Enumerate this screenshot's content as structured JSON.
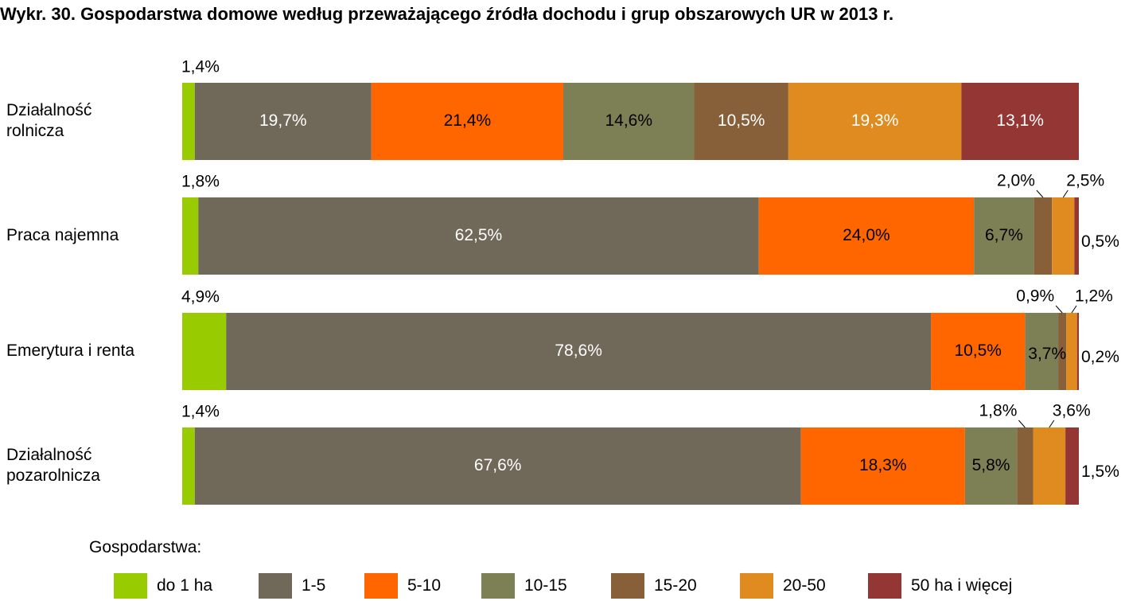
{
  "chart_data": {
    "type": "bar",
    "orientation": "horizontal",
    "stacked": true,
    "normalized": true,
    "title": "Wykr. 30. Gospodarstwa domowe według przeważającego źródła dochodu i grup obszarowych UR w 2013 r.",
    "categories": [
      [
        "Działalność",
        "rolnicza"
      ],
      [
        "Praca najemna"
      ],
      [
        "Emerytura i renta"
      ],
      [
        "Działalność",
        "pozarolnicza"
      ]
    ],
    "series": [
      {
        "name": "do 1 ha",
        "color": "#99CC00",
        "values": [
          1.4,
          1.8,
          4.9,
          1.4
        ],
        "labels": [
          "1,4%",
          "1,8%",
          "4,9%",
          "1,4%"
        ]
      },
      {
        "name": "1-5",
        "color": "#706858",
        "values": [
          19.7,
          62.5,
          78.6,
          67.6
        ],
        "labels": [
          "19,7%",
          "62,5%",
          "78,6%",
          "67,6%"
        ]
      },
      {
        "name": "5-10",
        "color": "#FF6600",
        "values": [
          21.4,
          24.0,
          10.5,
          18.3
        ],
        "labels": [
          "21,4%",
          "24,0%",
          "10,5%",
          "18,3%"
        ]
      },
      {
        "name": "10-15",
        "color": "#7D8055",
        "values": [
          14.6,
          6.7,
          3.7,
          5.8
        ],
        "labels": [
          "14,6%",
          "6,7%",
          "3,7%",
          "5,8%"
        ]
      },
      {
        "name": "15-20",
        "color": "#876039",
        "values": [
          10.5,
          2.0,
          0.9,
          1.8
        ],
        "labels": [
          "10,5%",
          "2,0%",
          "0,9%",
          "1,8%"
        ]
      },
      {
        "name": "20-50",
        "color": "#E08B20",
        "values": [
          19.3,
          2.5,
          1.2,
          3.6
        ],
        "labels": [
          "19,3%",
          "2,5%",
          "1,2%",
          "3,6%"
        ]
      },
      {
        "name": "50 ha i więcej",
        "color": "#943634",
        "values": [
          13.1,
          0.5,
          0.2,
          1.5
        ],
        "labels": [
          "13,1%",
          "0,5%",
          "0,2%",
          "1,5%"
        ]
      }
    ],
    "xlim": [
      0,
      100
    ],
    "legend_title": "Gospodarstwa:",
    "legend_position": "bottom"
  }
}
